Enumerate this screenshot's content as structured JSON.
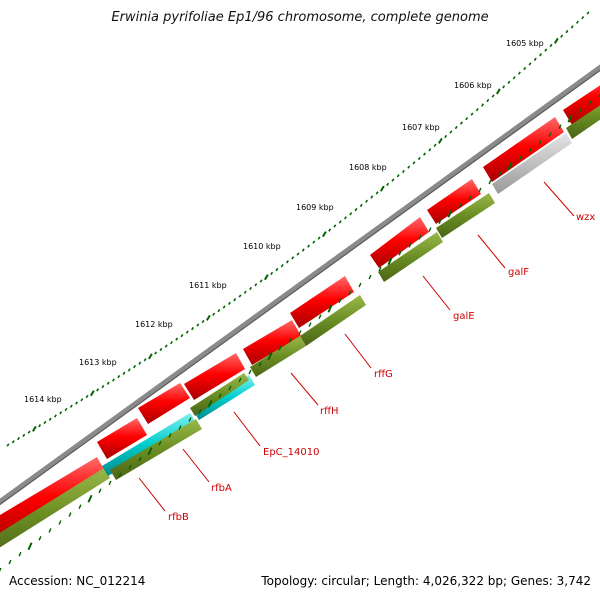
{
  "title": "Erwinia pyrifoliae Ep1/96 chromosome, complete genome",
  "footer": {
    "accession": "Accession: NC_012214",
    "summary": "Topology: circular; Length: 4,026,322 bp; Genes: 3,742"
  },
  "scale_labels": [
    "1605 kbp",
    "1606 kbp",
    "1607 kbp",
    "1608 kbp",
    "1609 kbp",
    "1610 kbp",
    "1611 kbp",
    "1612 kbp",
    "1613 kbp",
    "1614 kbp"
  ],
  "genes": [
    "wzx",
    "galF",
    "galE",
    "rffG",
    "rffH",
    "EpC_14010",
    "rfbA",
    "rfbB"
  ],
  "colors": {
    "backbone": "#808080",
    "cds": "#ff0000",
    "gene_olive": "#6b8e23",
    "gene_cyan": "#00cccc",
    "gene_grey": "#c0c0c0",
    "tick": "#006400",
    "label": "#cc0000"
  }
}
